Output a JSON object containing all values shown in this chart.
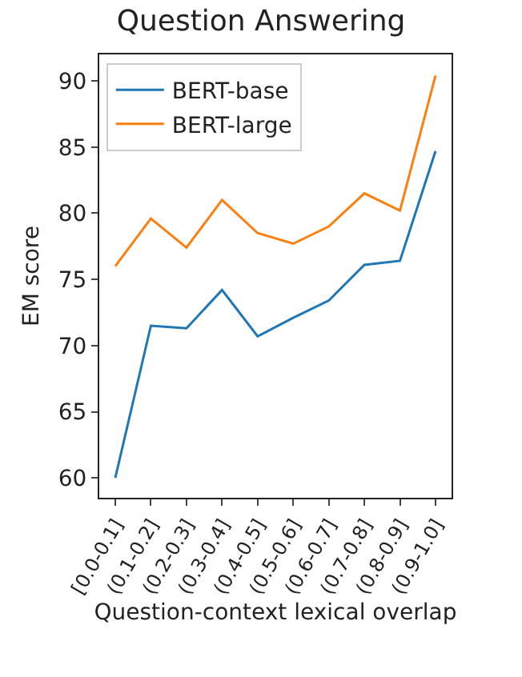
{
  "chart_data": {
    "type": "line",
    "title": "Question Answering",
    "xlabel": "Question-context lexical overlap",
    "ylabel": "EM score",
    "categories": [
      "[0.0-0.1]",
      "(0.1-0.2]",
      "(0.2-0.3]",
      "(0.3-0.4]",
      "(0.4-0.5]",
      "(0.5-0.6]",
      "(0.6-0.7]",
      "(0.7-0.8]",
      "(0.8-0.9]",
      "(0.9-1.0]"
    ],
    "series": [
      {
        "name": "BERT-base",
        "color": "#1f77b4",
        "values": [
          60.0,
          71.5,
          71.3,
          74.2,
          70.7,
          72.1,
          73.4,
          76.1,
          76.4,
          84.7
        ]
      },
      {
        "name": "BERT-large",
        "color": "#ff7f0e",
        "values": [
          76.0,
          79.6,
          77.4,
          81.0,
          78.5,
          77.7,
          79.0,
          81.5,
          80.2,
          90.4
        ]
      }
    ],
    "ylim": [
      58.5,
      92.0
    ],
    "yticks": [
      60,
      65,
      70,
      75,
      80,
      85,
      90
    ],
    "grid": false,
    "legend": "top left",
    "marker": "none",
    "line_style": "solid"
  }
}
